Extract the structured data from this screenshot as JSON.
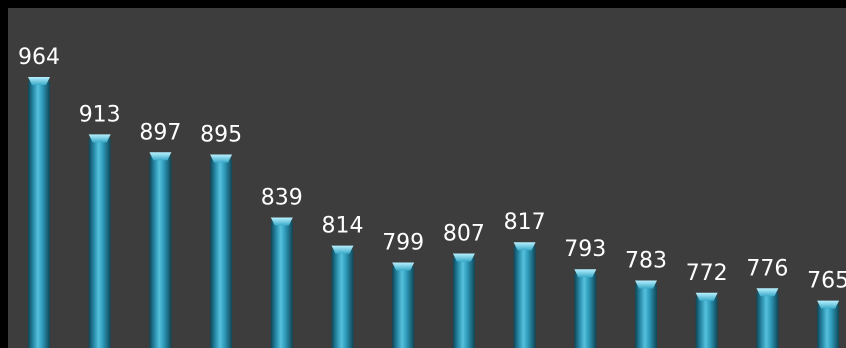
{
  "chart_data": {
    "type": "bar",
    "values": [
      964,
      913,
      897,
      895,
      839,
      814,
      799,
      807,
      817,
      793,
      783,
      772,
      776,
      765
    ],
    "labels": [
      "964",
      "913",
      "897",
      "895",
      "839",
      "814",
      "799",
      "807",
      "817",
      "793",
      "783",
      "772",
      "776",
      "765"
    ],
    "grid": false,
    "legend": "none",
    "colors": {
      "background": "#3d3d3d",
      "bar": "#2a8fae",
      "bar_highlight": "#8fe3f5",
      "bar_shadow": "#104b5c",
      "label": "#ffffff"
    }
  }
}
